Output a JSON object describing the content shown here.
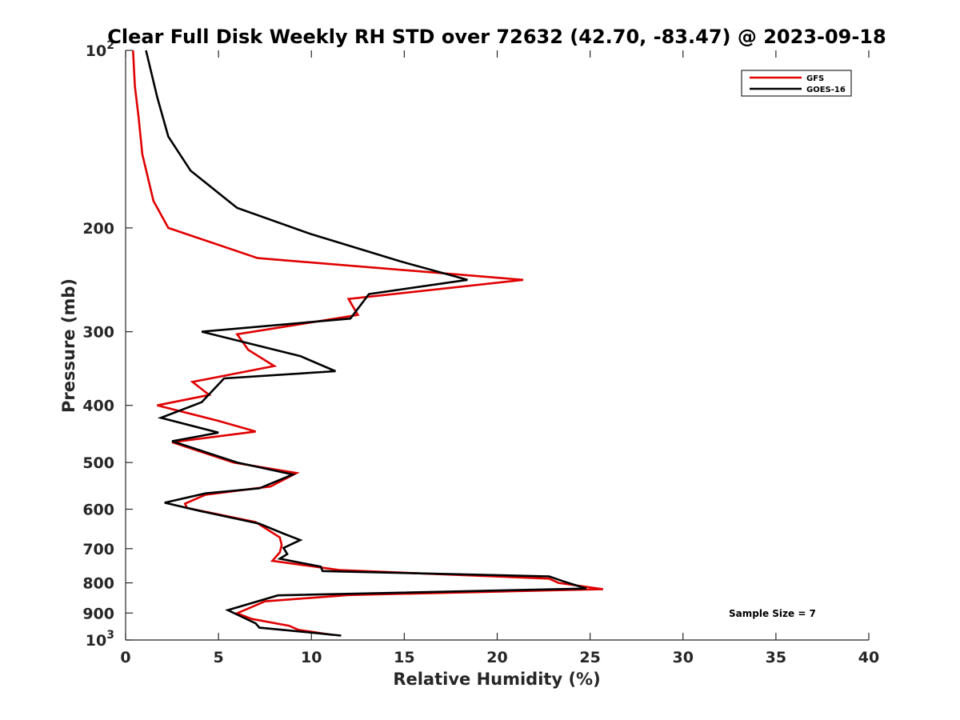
{
  "chart_data": {
    "type": "line",
    "title": "Clear Full Disk Weekly RH STD over 72632 (42.70, -83.47) @ 2023-09-18",
    "xlabel": "Relative Humidity (%)",
    "ylabel": "Pressure (mb)",
    "xlim": [
      0,
      40
    ],
    "ylim": [
      100,
      1000
    ],
    "yscale": "log",
    "y_reversed": true,
    "grid": false,
    "x_ticks": [
      0,
      5,
      10,
      15,
      20,
      25,
      30,
      35,
      40
    ],
    "x_tick_labels": [
      "0",
      "5",
      "10",
      "15",
      "20",
      "25",
      "30",
      "35",
      "40"
    ],
    "y_ticks": [
      100,
      200,
      300,
      400,
      500,
      600,
      700,
      800,
      900,
      1000
    ],
    "y_tick_labels": [
      {
        "base": "10",
        "exp": "2"
      },
      {
        "text": "200"
      },
      {
        "text": "300"
      },
      {
        "text": "400"
      },
      {
        "text": "500"
      },
      {
        "text": "600"
      },
      {
        "text": "700"
      },
      {
        "text": "800"
      },
      {
        "text": "900"
      },
      {
        "base": "10",
        "exp": "3"
      }
    ],
    "legend_position": "top-right",
    "annotation": "Sample Size = 7",
    "series": [
      {
        "name": "GFS",
        "color": "#e00000",
        "points": [
          [
            0.4,
            100
          ],
          [
            0.5,
            115
          ],
          [
            0.7,
            130
          ],
          [
            0.9,
            150
          ],
          [
            1.5,
            180
          ],
          [
            2.3,
            200
          ],
          [
            7.1,
            225
          ],
          [
            21.4,
            245
          ],
          [
            12.0,
            264
          ],
          [
            12.5,
            281
          ],
          [
            6.0,
            303
          ],
          [
            6.6,
            322
          ],
          [
            8.0,
            343
          ],
          [
            3.6,
            365
          ],
          [
            4.5,
            384
          ],
          [
            1.7,
            400
          ],
          [
            5.0,
            425
          ],
          [
            7.0,
            443
          ],
          [
            2.5,
            462
          ],
          [
            5.8,
            500
          ],
          [
            9.2,
            521
          ],
          [
            7.8,
            549
          ],
          [
            4.3,
            567
          ],
          [
            3.2,
            587
          ],
          [
            3.3,
            597
          ],
          [
            7.0,
            631
          ],
          [
            8.3,
            670
          ],
          [
            8.4,
            690
          ],
          [
            8.3,
            710
          ],
          [
            7.9,
            734
          ],
          [
            11.5,
            761
          ],
          [
            22.8,
            787
          ],
          [
            23.3,
            800
          ],
          [
            25.7,
            820
          ],
          [
            12.0,
            839
          ],
          [
            7.5,
            860
          ],
          [
            6.0,
            901
          ],
          [
            6.8,
            921
          ],
          [
            8.8,
            946
          ],
          [
            9.3,
            961
          ],
          [
            11.1,
            980
          ]
        ]
      },
      {
        "name": "GOES-16",
        "color": "#000000",
        "points": [
          [
            1.1,
            100
          ],
          [
            1.7,
            120
          ],
          [
            2.3,
            140
          ],
          [
            3.5,
            160
          ],
          [
            6.0,
            185
          ],
          [
            10.0,
            205
          ],
          [
            14.8,
            228
          ],
          [
            18.4,
            245
          ],
          [
            13.1,
            259
          ],
          [
            12.1,
            285
          ],
          [
            4.1,
            300
          ],
          [
            9.4,
            330
          ],
          [
            11.3,
            350
          ],
          [
            5.3,
            360
          ],
          [
            4.1,
            395
          ],
          [
            1.9,
            420
          ],
          [
            5.0,
            445
          ],
          [
            2.5,
            460
          ],
          [
            6.0,
            500
          ],
          [
            9.0,
            524
          ],
          [
            7.2,
            553
          ],
          [
            4.3,
            564
          ],
          [
            2.1,
            585
          ],
          [
            4.1,
            605
          ],
          [
            7.2,
            635
          ],
          [
            8.5,
            660
          ],
          [
            9.4,
            677
          ],
          [
            8.5,
            698
          ],
          [
            8.7,
            715
          ],
          [
            8.3,
            728
          ],
          [
            10.5,
            751
          ],
          [
            10.6,
            764
          ],
          [
            22.8,
            780
          ],
          [
            23.5,
            794
          ],
          [
            24.8,
            818
          ],
          [
            8.2,
            840
          ],
          [
            5.5,
            890
          ],
          [
            7.0,
            937
          ],
          [
            7.2,
            953
          ],
          [
            10.5,
            975
          ],
          [
            11.6,
            983
          ]
        ]
      }
    ]
  }
}
